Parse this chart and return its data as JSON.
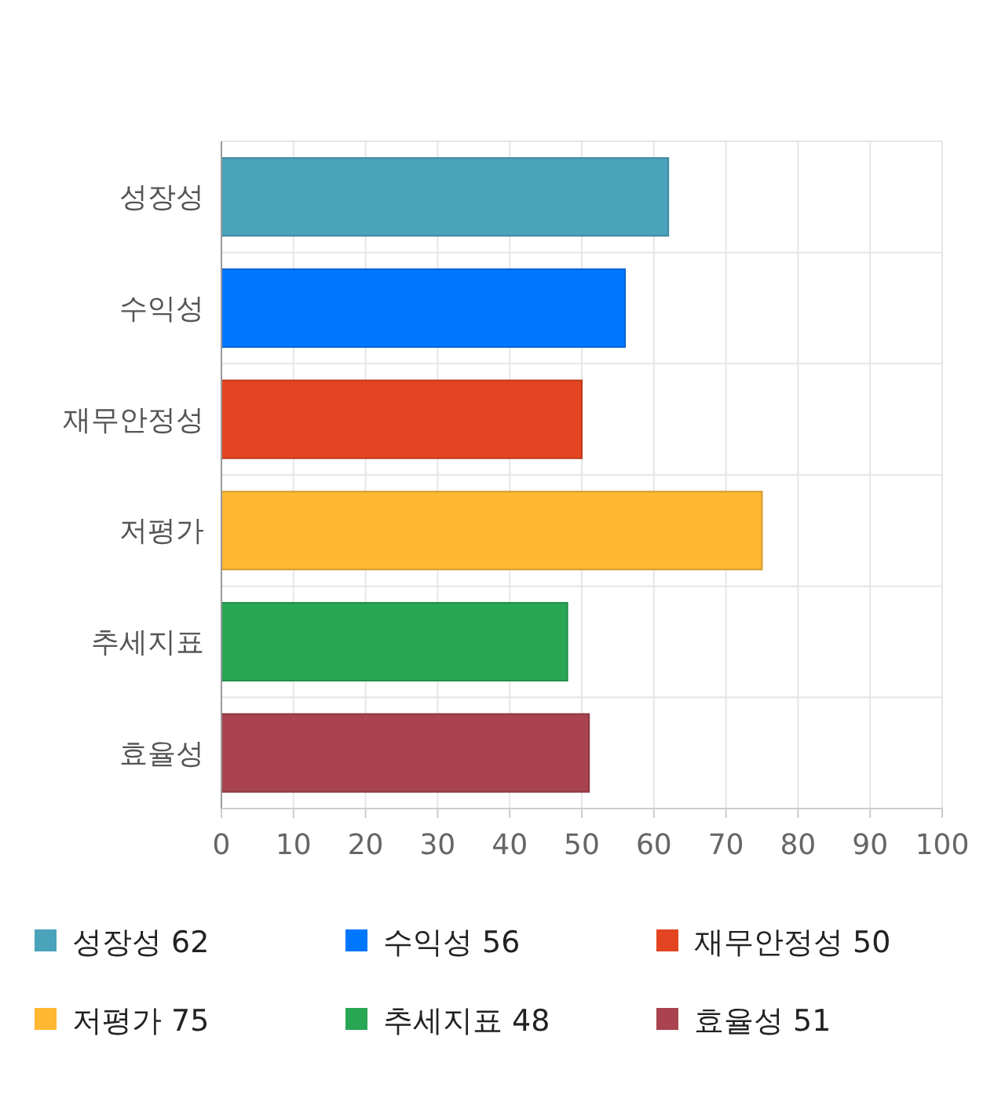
{
  "chart_data": {
    "type": "bar",
    "orientation": "horizontal",
    "categories": [
      "성장성",
      "수익성",
      "재무안정성",
      "저평가",
      "추세지표",
      "효율성"
    ],
    "values": [
      62,
      56,
      50,
      75,
      48,
      51
    ],
    "colors": [
      "#4aa2bb",
      "#0077ff",
      "#e34522",
      "#ffb833",
      "#28a755",
      "#a8434f"
    ],
    "xlim": [
      0,
      100
    ],
    "xticks": [
      0,
      10,
      20,
      30,
      40,
      50,
      60,
      70,
      80,
      90,
      100
    ],
    "grid": true,
    "annotations": [
      "성장성 62",
      "수익성 56",
      "재무안정성 50",
      "저평가 75",
      "추세지표 48",
      "효율성 51"
    ]
  }
}
